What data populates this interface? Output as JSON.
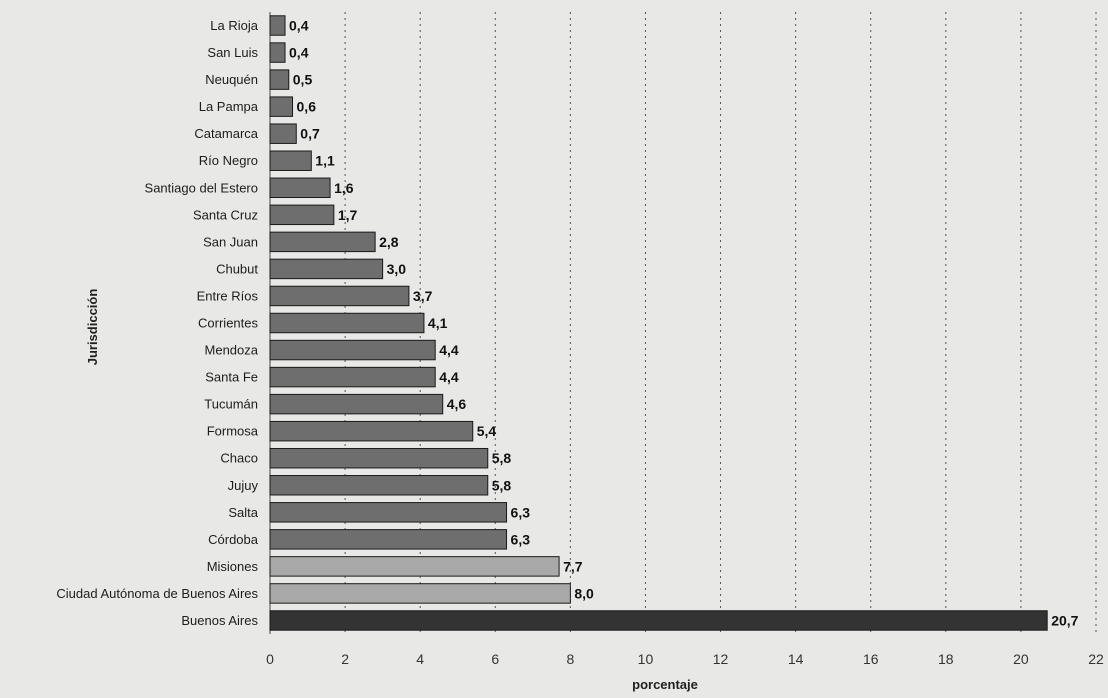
{
  "chart_data": {
    "type": "bar",
    "orientation": "horizontal",
    "xlabel": "porcentaje",
    "ylabel": "Jurisdicción",
    "xlim": [
      0,
      22
    ],
    "xticks": [
      0,
      2,
      4,
      6,
      8,
      10,
      12,
      14,
      16,
      18,
      20,
      22
    ],
    "grid": "vertical dotted",
    "legend": "none",
    "categories": [
      "La Rioja",
      "San Luis",
      "Neuquén",
      "La Pampa",
      "Catamarca",
      "Río Negro",
      "Santiago del Estero",
      "Santa Cruz",
      "San Juan",
      "Chubut",
      "Entre Ríos",
      "Corrientes",
      "Mendoza",
      "Santa Fe",
      "Tucumán",
      "Formosa",
      "Chaco",
      "Jujuy",
      "Salta",
      "Córdoba",
      "Misiones",
      "Ciudad Autónoma de Buenos Aires",
      "Buenos Aires"
    ],
    "values": [
      0.4,
      0.4,
      0.5,
      0.6,
      0.7,
      1.1,
      1.6,
      1.7,
      2.8,
      3.0,
      3.7,
      4.1,
      4.4,
      4.4,
      4.6,
      5.4,
      5.8,
      5.8,
      6.3,
      6.3,
      7.7,
      8.0,
      20.7
    ],
    "value_labels": [
      "0,4",
      "0,4",
      "0,5",
      "0,6",
      "0,7",
      "1,1",
      "1,6",
      "1,7",
      "2,8",
      "3,0",
      "3,7",
      "4,1",
      "4,4",
      "4,4",
      "4,6",
      "5,4",
      "5,8",
      "5,8",
      "6,3",
      "6,3",
      "7,7",
      "8,0",
      "20,7"
    ],
    "bar_groups": [
      "mid",
      "mid",
      "mid",
      "mid",
      "mid",
      "mid",
      "mid",
      "mid",
      "mid",
      "mid",
      "mid",
      "mid",
      "mid",
      "mid",
      "mid",
      "mid",
      "mid",
      "mid",
      "mid",
      "mid",
      "light",
      "light",
      "dark"
    ],
    "colors": {
      "mid": "#6e6e6e",
      "light": "#a9a9a9",
      "dark": "#333333",
      "background": "#e8e8e6",
      "grid": "#555555"
    }
  }
}
